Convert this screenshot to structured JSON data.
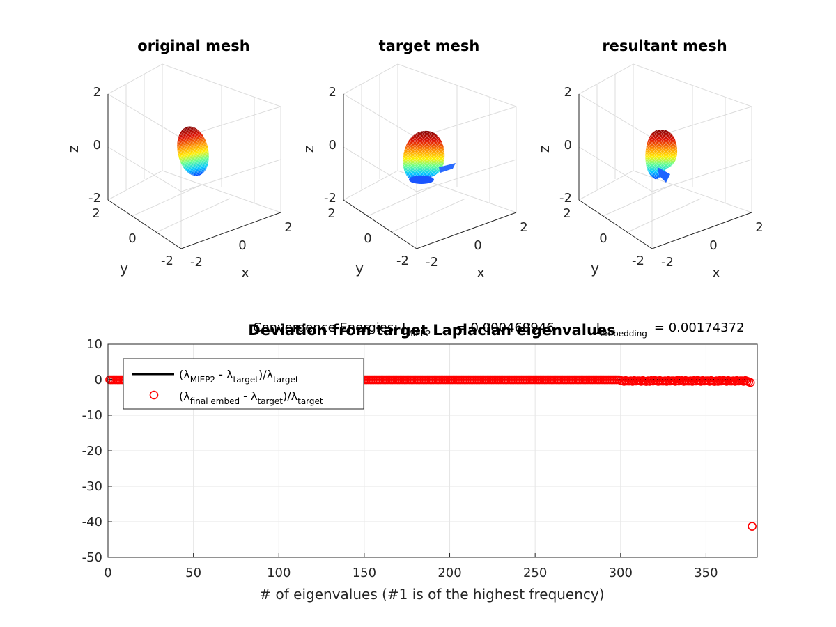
{
  "colors": {
    "series_line": "#000000",
    "series_markers": "#ff0000",
    "mesh_top": "#8b0000",
    "mesh_mid": "#ffcc00",
    "mesh_low": "#00c8c8",
    "mesh_bottom": "#0040ff"
  },
  "mesh_panels": [
    {
      "title": "original mesh",
      "xlabel": "x",
      "ylabel": "y",
      "zlabel": "z",
      "z_ticks": [
        "2",
        "0",
        "-2"
      ],
      "y_ticks": [
        "2",
        "0",
        "-2"
      ],
      "x_ticks": [
        "-2",
        "0",
        "2"
      ]
    },
    {
      "title": "target mesh",
      "xlabel": "x",
      "ylabel": "y",
      "zlabel": "z",
      "z_ticks": [
        "2",
        "0",
        "-2"
      ],
      "y_ticks": [
        "2",
        "0",
        "-2"
      ],
      "x_ticks": [
        "-2",
        "0",
        "2"
      ]
    },
    {
      "title": "resultant mesh",
      "xlabel": "x",
      "ylabel": "y",
      "zlabel": "z",
      "z_ticks": [
        "2",
        "0",
        "-2"
      ],
      "y_ticks": [
        "2",
        "0",
        "-2"
      ],
      "x_ticks": [
        "-2",
        "0",
        "2"
      ]
    }
  ],
  "energies": {
    "prefix": "Convergence Energies: J",
    "miep2_sub": "MIEP2",
    "miep2_value": "= 0.000469946",
    "j": "J",
    "embedding_sub": "embedding",
    "embedding_value": "= 0.00174372"
  },
  "chart_data": {
    "type": "scatter",
    "title": "Deviation from target Laplacian eigenvalues",
    "xlabel": "# of eigenvalues (#1 is of the highest frequency)",
    "ylabel": "",
    "xlim": [
      0,
      380
    ],
    "ylim": [
      -50,
      10
    ],
    "xticks": [
      0,
      50,
      100,
      150,
      200,
      250,
      300,
      350
    ],
    "yticks": [
      10,
      0,
      -10,
      -20,
      -30,
      -40,
      -50
    ],
    "grid": true,
    "legend_position": "top-left",
    "series": [
      {
        "name": "(λMIEP2 - λtarget)/λtarget",
        "style": "line",
        "color": "#000000",
        "x": [
          1,
          377
        ],
        "y": [
          0,
          0
        ]
      },
      {
        "name": "(λfinal embed - λtarget)/λtarget",
        "style": "marker-circle",
        "color": "#ff0000",
        "x_range": [
          1,
          377
        ],
        "count": 377,
        "y_typical": 0,
        "y_near_end": [
          [
            300,
            -0.2
          ],
          [
            305,
            -0.4
          ],
          [
            310,
            -0.3
          ],
          [
            315,
            -0.5
          ],
          [
            320,
            -0.2
          ],
          [
            325,
            -0.4
          ],
          [
            330,
            -0.3
          ],
          [
            335,
            -0.1
          ],
          [
            340,
            -0.4
          ],
          [
            345,
            -0.2
          ],
          [
            350,
            -0.3
          ],
          [
            355,
            -0.5
          ],
          [
            360,
            -0.2
          ],
          [
            365,
            -0.4
          ],
          [
            370,
            -0.3
          ],
          [
            375,
            -0.6
          ],
          [
            376,
            -0.8
          ]
        ],
        "outlier": [
          377,
          -41.3
        ]
      }
    ],
    "legend": {
      "line": {
        "lambda": "(λ",
        "sub1": "MIEP2",
        "mid": " - λ",
        "sub2": "target",
        "tail": ")/λ",
        "sub3": "target"
      },
      "marker": {
        "lambda": "(λ",
        "sub1": "final embed",
        "mid": " - λ",
        "sub2": "target",
        "tail": ")/λ",
        "sub3": "target"
      }
    }
  }
}
